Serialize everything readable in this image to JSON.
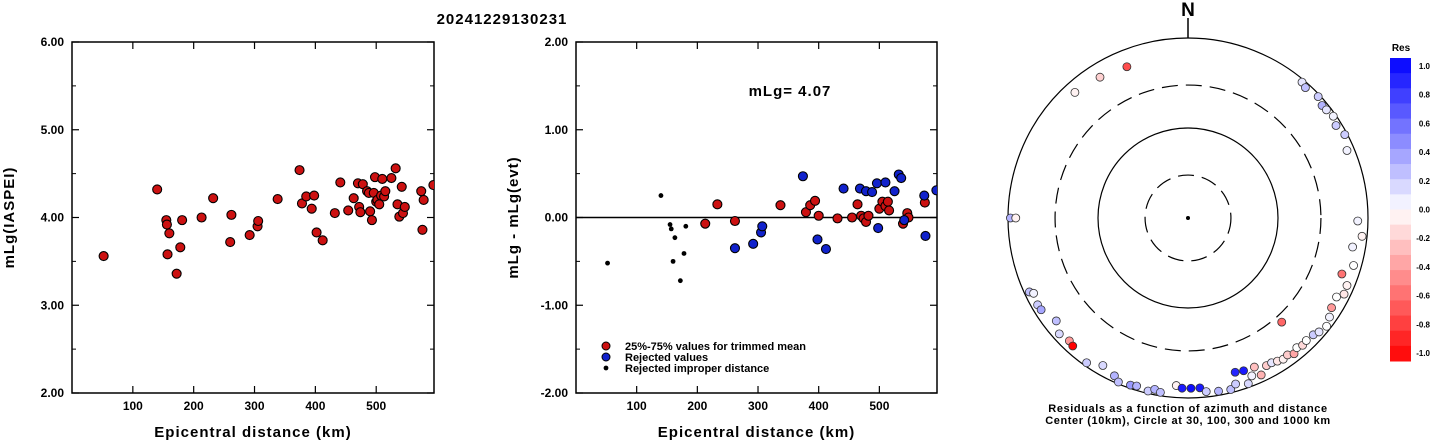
{
  "figure_title": "20241229130231",
  "chart_data": [
    {
      "type": "scatter",
      "xlabel": "Epicentral distance (km)",
      "ylabel": "mLg(IASPEI)",
      "xlim": [
        0,
        595
      ],
      "ylim": [
        2.0,
        6.0
      ],
      "x_ticks": [
        100,
        200,
        300,
        400,
        500
      ],
      "y_ticks": [
        "2.00",
        "3.00",
        "4.00",
        "5.00",
        "6.00"
      ],
      "series": [
        {
          "color": "#cc1111",
          "points": [
            [
              52,
              3.56
            ],
            [
              140,
              4.32
            ],
            [
              155,
              3.97
            ],
            [
              156,
              3.92
            ],
            [
              157,
              3.58
            ],
            [
              160,
              3.82
            ],
            [
              172,
              3.36
            ],
            [
              178,
              3.66
            ],
            [
              181,
              3.97
            ],
            [
              213,
              4.0
            ],
            [
              232,
              4.22
            ],
            [
              260,
              3.72
            ],
            [
              262,
              4.03
            ],
            [
              292,
              3.8
            ],
            [
              305,
              3.9
            ],
            [
              306,
              3.96
            ],
            [
              338,
              4.21
            ],
            [
              374,
              4.54
            ],
            [
              378,
              4.16
            ],
            [
              385,
              4.24
            ],
            [
              394,
              4.1
            ],
            [
              398,
              4.25
            ],
            [
              402,
              3.83
            ],
            [
              412,
              3.74
            ],
            [
              432,
              4.05
            ],
            [
              441,
              4.4
            ],
            [
              454,
              4.08
            ],
            [
              463,
              4.22
            ],
            [
              470,
              4.39
            ],
            [
              472,
              4.12
            ],
            [
              474,
              4.06
            ],
            [
              478,
              4.38
            ],
            [
              485,
              4.3
            ],
            [
              488,
              4.28
            ],
            [
              490,
              4.07
            ],
            [
              493,
              3.97
            ],
            [
              496,
              4.28
            ],
            [
              498,
              4.46
            ],
            [
              500,
              4.18
            ],
            [
              502,
              4.2
            ],
            [
              505,
              4.15
            ],
            [
              508,
              4.25
            ],
            [
              510,
              4.44
            ],
            [
              513,
              4.24
            ],
            [
              515,
              4.3
            ],
            [
              525,
              4.45
            ],
            [
              532,
              4.56
            ],
            [
              535,
              4.15
            ],
            [
              538,
              4.01
            ],
            [
              542,
              4.35
            ],
            [
              544,
              4.05
            ],
            [
              547,
              4.12
            ],
            [
              574,
              4.3
            ],
            [
              576,
              3.86
            ],
            [
              578,
              4.2
            ],
            [
              594,
              4.37
            ]
          ]
        }
      ]
    },
    {
      "type": "scatter",
      "xlabel": "Epicentral distance (km)",
      "ylabel": "mLg - mLg(evt)",
      "xlim": [
        0,
        595
      ],
      "ylim": [
        -2.0,
        2.0
      ],
      "x_ticks": [
        100,
        200,
        300,
        400,
        500
      ],
      "y_ticks": [
        "-2.00",
        "-1.00",
        "0.00",
        "1.00",
        "2.00"
      ],
      "annotation": "mLg= 4.07",
      "legend": [
        {
          "label": "25%-75% values for trimmed mean",
          "color": "#cc1111",
          "marker": "circle"
        },
        {
          "label": "Rejected values",
          "color": "#1122cc",
          "marker": "circle"
        },
        {
          "label": "Rejected improper distance",
          "color": "#000000",
          "marker": "dot"
        }
      ],
      "series": [
        {
          "name": "25%-75% values for trimmed mean",
          "color": "#cc1111",
          "points": [
            [
              213,
              -0.07
            ],
            [
              233,
              0.15
            ],
            [
              262,
              -0.04
            ],
            [
              337,
              0.14
            ],
            [
              379,
              0.06
            ],
            [
              386,
              0.14
            ],
            [
              394,
              0.19
            ],
            [
              400,
              0.02
            ],
            [
              431,
              -0.01
            ],
            [
              455,
              0.0
            ],
            [
              464,
              0.15
            ],
            [
              470,
              0.02
            ],
            [
              474,
              -0.01
            ],
            [
              478,
              -0.05
            ],
            [
              482,
              0.02
            ],
            [
              500,
              0.1
            ],
            [
              505,
              0.18
            ],
            [
              510,
              0.13
            ],
            [
              514,
              0.18
            ],
            [
              516,
              0.08
            ],
            [
              539,
              -0.07
            ],
            [
              546,
              0.05
            ],
            [
              548,
              0.0
            ],
            [
              575,
              0.17
            ]
          ]
        },
        {
          "name": "Rejected values",
          "color": "#1122cc",
          "points": [
            [
              262,
              -0.35
            ],
            [
              292,
              -0.3
            ],
            [
              305,
              -0.17
            ],
            [
              307,
              -0.1
            ],
            [
              374,
              0.47
            ],
            [
              398,
              -0.25
            ],
            [
              412,
              -0.36
            ],
            [
              441,
              0.33
            ],
            [
              468,
              0.33
            ],
            [
              478,
              0.3
            ],
            [
              488,
              0.29
            ],
            [
              496,
              0.39
            ],
            [
              498,
              -0.12
            ],
            [
              510,
              0.4
            ],
            [
              525,
              0.3
            ],
            [
              532,
              0.49
            ],
            [
              536,
              0.45
            ],
            [
              541,
              -0.03
            ],
            [
              574,
              0.25
            ],
            [
              576,
              -0.21
            ],
            [
              594,
              0.31
            ]
          ]
        },
        {
          "name": "Rejected improper distance",
          "color": "#000000",
          "points": [
            [
              52,
              -0.52
            ],
            [
              140,
              0.25
            ],
            [
              155,
              -0.08
            ],
            [
              157,
              -0.13
            ],
            [
              160,
              -0.5
            ],
            [
              163,
              -0.23
            ],
            [
              172,
              -0.72
            ],
            [
              178,
              -0.41
            ],
            [
              181,
              -0.1
            ]
          ]
        }
      ]
    },
    {
      "type": "polar-scatter",
      "north_label": "N",
      "caption_line1": "Residuals as a function of azimuth and distance",
      "caption_line2": "Center (10km), Circle at 30, 100, 300 and 1000 km",
      "colorbar_title": "Res",
      "colorbar_ticks": [
        "1.0",
        "0.8",
        "0.6",
        "0.4",
        "0.2",
        "0.0",
        "-0.2",
        "-0.4",
        "-0.6",
        "-0.8",
        "-1.0"
      ],
      "stations": [
        {
          "az": 318,
          "dist": 755,
          "res": -0.05
        },
        {
          "az": 328,
          "dist": 700,
          "res": -0.18
        },
        {
          "az": 338,
          "dist": 650,
          "res": -0.7
        },
        {
          "az": 40,
          "dist": 935,
          "res": 0.1
        },
        {
          "az": 42,
          "dist": 890,
          "res": 0.25
        },
        {
          "az": 47,
          "dist": 950,
          "res": 0.2
        },
        {
          "az": 50,
          "dist": 880,
          "res": 0.3
        },
        {
          "az": 52,
          "dist": 895,
          "res": 0.1
        },
        {
          "az": 55,
          "dist": 935,
          "res": 0.05
        },
        {
          "az": 58,
          "dist": 870,
          "res": 0.2
        },
        {
          "az": 62,
          "dist": 940,
          "res": 0.2
        },
        {
          "az": 67,
          "dist": 830,
          "res": 0.05
        },
        {
          "az": 270,
          "dist": 940,
          "res": 0.3
        },
        {
          "az": 270,
          "dist": 820,
          "res": -0.05
        },
        {
          "az": 245,
          "dist": 880,
          "res": 0.25
        },
        {
          "az": 244,
          "dist": 810,
          "res": 0.05
        },
        {
          "az": 240,
          "dist": 850,
          "res": 0.2
        },
        {
          "az": 238,
          "dist": 840,
          "res": 0.35
        },
        {
          "az": 232,
          "dist": 720,
          "res": 0.25
        },
        {
          "az": 228,
          "dist": 840,
          "res": 0.15
        },
        {
          "az": 224,
          "dist": 790,
          "res": -0.4
        },
        {
          "az": 222,
          "dist": 820,
          "res": -1.0
        },
        {
          "az": 215,
          "dist": 920,
          "res": 0.2
        },
        {
          "az": 210,
          "dist": 780,
          "res": 0.15
        },
        {
          "az": 205,
          "dist": 860,
          "res": 0.3
        },
        {
          "az": 203,
          "dist": 955,
          "res": 0.25
        },
        {
          "az": 199,
          "dist": 920,
          "res": 0.4
        },
        {
          "az": 197,
          "dist": 895,
          "res": 0.3
        },
        {
          "az": 193,
          "dist": 940,
          "res": 0.2
        },
        {
          "az": 191,
          "dist": 870,
          "res": 0.3
        },
        {
          "az": 189,
          "dist": 915,
          "res": 0.25
        },
        {
          "az": 184,
          "dist": 735,
          "res": -0.05
        },
        {
          "az": 182,
          "dist": 780,
          "res": 0.9
        },
        {
          "az": 179,
          "dist": 780,
          "res": 0.95
        },
        {
          "az": 176,
          "dist": 780,
          "res": 0.9
        },
        {
          "az": 174,
          "dist": 870,
          "res": 0.2
        },
        {
          "az": 170,
          "dist": 900,
          "res": 0.3
        },
        {
          "az": 166,
          "dist": 920,
          "res": 0.25
        },
        {
          "az": 164,
          "dist": 830,
          "res": 0.2
        },
        {
          "az": 160,
          "dist": 910,
          "res": 0.15
        },
        {
          "az": 158,
          "dist": 780,
          "res": 0.05
        },
        {
          "az": 155,
          "dist": 840,
          "res": -0.3
        },
        {
          "az": 152,
          "dist": 720,
          "res": -0.2
        },
        {
          "az": 150,
          "dist": 720,
          "res": 0.1
        },
        {
          "az": 148,
          "dist": 750,
          "res": -0.1
        },
        {
          "az": 146,
          "dist": 780,
          "res": -0.05
        },
        {
          "az": 144,
          "dist": 760,
          "res": -0.2
        },
        {
          "az": 142,
          "dist": 820,
          "res": -0.35
        },
        {
          "az": 140,
          "dist": 760,
          "res": 0.0
        },
        {
          "az": 138,
          "dist": 800,
          "res": -0.15
        },
        {
          "az": 136,
          "dist": 780,
          "res": 0.0
        },
        {
          "az": 163,
          "dist": 620,
          "res": 0.85
        },
        {
          "az": 160,
          "dist": 640,
          "res": 0.9
        },
        {
          "az": 156,
          "dist": 650,
          "res": -0.25
        },
        {
          "az": 133,
          "dist": 800,
          "res": 0.2
        },
        {
          "az": 131,
          "dist": 850,
          "res": 0.1
        },
        {
          "az": 128,
          "dist": 900,
          "res": 0.0
        },
        {
          "az": 125,
          "dist": 830,
          "res": 0.05
        },
        {
          "az": 122,
          "dist": 760,
          "res": -0.4
        },
        {
          "az": 118,
          "dist": 740,
          "res": 0.0
        },
        {
          "az": 116,
          "dist": 850,
          "res": -0.1
        },
        {
          "az": 113,
          "dist": 830,
          "res": -0.05
        },
        {
          "az": 110,
          "dist": 660,
          "res": -0.55
        },
        {
          "az": 106,
          "dist": 820,
          "res": 0.0
        },
        {
          "az": 100,
          "dist": 720,
          "res": 0.05
        },
        {
          "az": 96,
          "dist": 880,
          "res": -0.05
        },
        {
          "az": 91,
          "dist": 770,
          "res": 0.05
        },
        {
          "az": 138,
          "dist": 360,
          "res": -0.6
        }
      ]
    }
  ]
}
